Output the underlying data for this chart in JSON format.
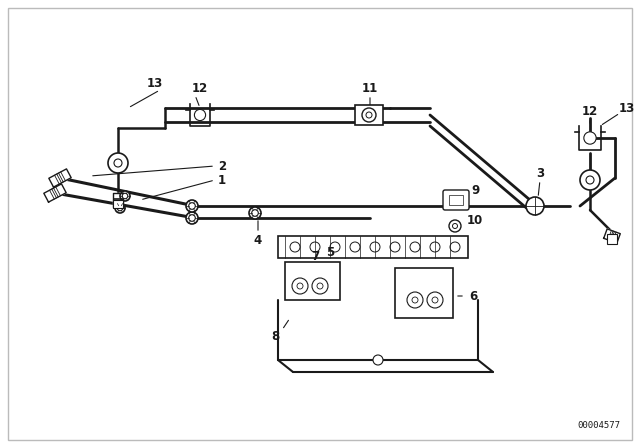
{
  "bg_color": "#ffffff",
  "line_color": "#1a1a1a",
  "fig_width": 6.4,
  "fig_height": 4.48,
  "dpi": 100,
  "catalog_number": "00004577",
  "border_color": "#cccccc"
}
